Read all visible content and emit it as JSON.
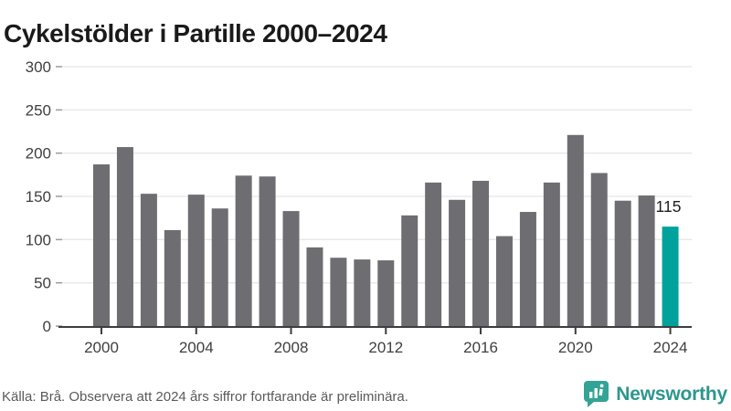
{
  "title": "Cykelstölder i Partille 2000–2024",
  "chart_data": {
    "type": "bar",
    "title": "Cykelstölder i Partille 2000–2024",
    "categories": [
      2000,
      2001,
      2002,
      2003,
      2004,
      2005,
      2006,
      2007,
      2008,
      2009,
      2010,
      2011,
      2012,
      2013,
      2014,
      2015,
      2016,
      2017,
      2018,
      2019,
      2020,
      2021,
      2022,
      2023,
      2024
    ],
    "values": [
      187,
      207,
      153,
      111,
      152,
      136,
      174,
      173,
      133,
      91,
      79,
      77,
      76,
      128,
      166,
      146,
      168,
      104,
      132,
      166,
      221,
      177,
      145,
      151,
      115
    ],
    "highlight_category": 2024,
    "highlight_value_label": "115",
    "xlabel": "",
    "ylabel": "",
    "ylim": [
      0,
      300
    ],
    "yticks": [
      0,
      50,
      100,
      150,
      200,
      250,
      300
    ],
    "xticks": [
      2000,
      2004,
      2008,
      2012,
      2016,
      2020,
      2024
    ],
    "grid": "horizontal",
    "legend": "none",
    "bar_color": "#6d6d72",
    "highlight_color": "#00a29b"
  },
  "footer": {
    "source": "Källa: Brå. Observera att 2024 års siffror fortfarande är preliminära.",
    "brand": "Newsworthy"
  },
  "colors": {
    "title_text": "#1a1a1a",
    "axis_line": "#3d3d3d",
    "axis_text": "#3f3f3f",
    "grid_line": "#e8e8e8",
    "y_tick": "#9b9b9b",
    "annotation_text": "#1f1f1f",
    "footer_text": "#5a5a5a",
    "brand_teal": "#2e968e",
    "logo_bubble_teal": "#33a396"
  }
}
